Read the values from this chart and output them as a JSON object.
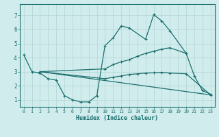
{
  "bg_color": "#d0ecec",
  "grid_color": "#b8d8d8",
  "line_color": "#1a6e6e",
  "xlabel": "Humidex (Indice chaleur)",
  "xlim": [
    -0.5,
    23.5
  ],
  "ylim": [
    0.5,
    7.8
  ],
  "xticks": [
    0,
    1,
    2,
    3,
    4,
    5,
    6,
    7,
    8,
    9,
    10,
    11,
    12,
    13,
    14,
    15,
    16,
    17,
    18,
    19,
    20,
    21,
    22,
    23
  ],
  "yticks": [
    1,
    2,
    3,
    4,
    5,
    6,
    7
  ],
  "series1_x": [
    0,
    1,
    2,
    3,
    4,
    5,
    6,
    7,
    8,
    9,
    10,
    11,
    12,
    13,
    15,
    16,
    17,
    18,
    20,
    21,
    22,
    23
  ],
  "series1_y": [
    4.2,
    3.0,
    2.9,
    2.5,
    2.4,
    1.3,
    1.0,
    0.85,
    0.85,
    1.3,
    4.85,
    5.4,
    6.25,
    6.1,
    5.3,
    7.05,
    6.6,
    5.9,
    4.3,
    2.7,
    1.65,
    1.4
  ],
  "series2_x": [
    2,
    10,
    11,
    12,
    13,
    14,
    15,
    16,
    17,
    18,
    20
  ],
  "series2_y": [
    3.0,
    3.2,
    3.5,
    3.7,
    3.85,
    4.1,
    4.3,
    4.45,
    4.6,
    4.7,
    4.3
  ],
  "series3_x": [
    2,
    10,
    11,
    12,
    13,
    14,
    15,
    16,
    17,
    18,
    20,
    23
  ],
  "series3_y": [
    3.0,
    2.5,
    2.6,
    2.7,
    2.8,
    2.85,
    2.9,
    2.92,
    2.95,
    2.9,
    2.85,
    1.35
  ],
  "series4_x": [
    2,
    23
  ],
  "series4_y": [
    3.0,
    1.35
  ]
}
